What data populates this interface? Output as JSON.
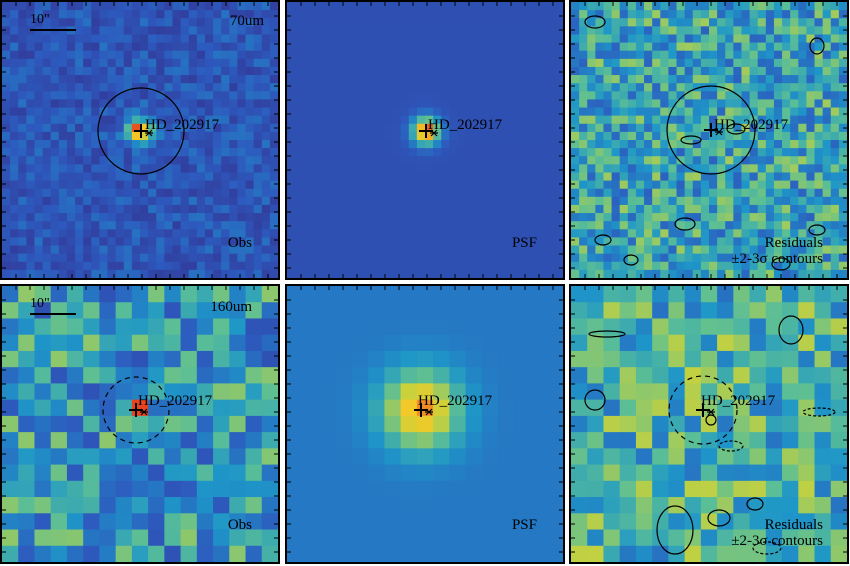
{
  "rows": [
    {
      "band": "70um",
      "panels": [
        {
          "id": "obs",
          "target": "HD_202917",
          "label": "Obs",
          "scale": "10\"",
          "band_label": "70um",
          "aperture": "solid"
        },
        {
          "id": "psf",
          "target": "HD_202917",
          "label": "PSF"
        },
        {
          "id": "residuals",
          "target": "HD_202917",
          "label": "Residuals",
          "sublabel": "±2-3σ contours",
          "aperture": "solid"
        }
      ]
    },
    {
      "band": "160um",
      "panels": [
        {
          "id": "obs",
          "target": "HD_202917",
          "label": "Obs",
          "scale": "10\"",
          "band_label": "160um",
          "aperture": "dashed"
        },
        {
          "id": "psf",
          "target": "HD_202917",
          "label": "PSF"
        },
        {
          "id": "residuals",
          "target": "HD_202917",
          "label": "Residuals",
          "sublabel": "±2-3σ contours",
          "aperture": "dashed"
        }
      ]
    }
  ],
  "colors": {
    "low": "#3b2f8f",
    "mid": "#3c9fd0",
    "high": "#f0e03a",
    "peak": "#e84a2a",
    "psf_background": "#3a5fb2"
  }
}
